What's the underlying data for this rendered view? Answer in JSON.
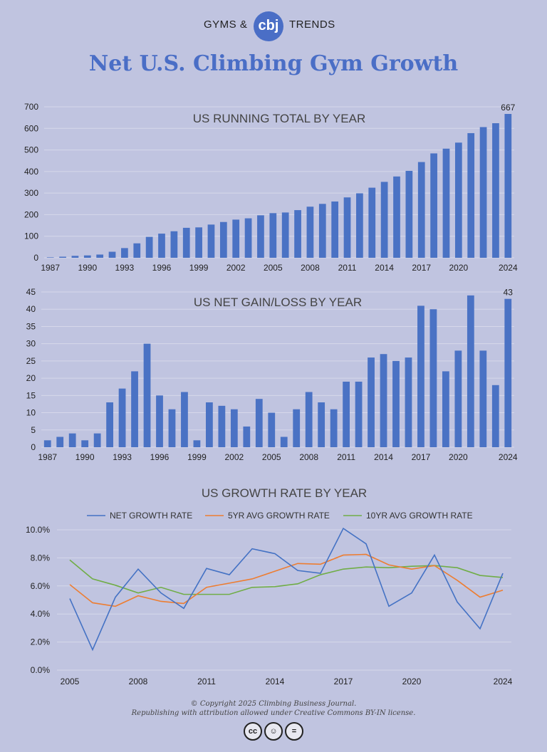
{
  "header": {
    "left": "GYMS &",
    "logo": "cbj",
    "right": "TRENDS"
  },
  "title": "Net U.S. Climbing Gym Growth",
  "footer": {
    "line1": "© Copyright 2025 Climbing Business Journal.",
    "line2": "Republishing with attribution allowed under Creative Commons BY-IN license."
  },
  "icons": [
    "cc-icon",
    "attribution-icon",
    "no-derivatives-icon"
  ],
  "colors": {
    "bar": "#4a72c4",
    "net": "#4472c4",
    "avg5": "#ed7d31",
    "avg10": "#70ad47",
    "title": "#4a6ec6"
  },
  "chart_data": [
    {
      "type": "bar",
      "title": "US RUNNING TOTAL BY YEAR",
      "x": [
        1987,
        1988,
        1989,
        1990,
        1991,
        1992,
        1993,
        1994,
        1995,
        1996,
        1997,
        1998,
        1999,
        2000,
        2001,
        2002,
        2003,
        2004,
        2005,
        2006,
        2007,
        2008,
        2009,
        2010,
        2011,
        2012,
        2013,
        2014,
        2015,
        2016,
        2017,
        2018,
        2019,
        2020,
        2021,
        2022,
        2023,
        2024
      ],
      "values": [
        2,
        5,
        9,
        11,
        15,
        28,
        45,
        67,
        97,
        112,
        123,
        139,
        141,
        154,
        166,
        177,
        183,
        197,
        207,
        210,
        221,
        237,
        250,
        261,
        280,
        299,
        325,
        352,
        377,
        403,
        444,
        484,
        506,
        534,
        578,
        606,
        624,
        667
      ],
      "ticks": [
        "1987",
        "1990",
        "1993",
        "1996",
        "1999",
        "2002",
        "2005",
        "2008",
        "2011",
        "2014",
        "2017",
        "2020",
        "2024"
      ],
      "ylim": [
        0,
        700
      ],
      "yticks": [
        "0",
        "100",
        "200",
        "300",
        "400",
        "500",
        "600",
        "700"
      ],
      "last_label": "667"
    },
    {
      "type": "bar",
      "title": "US NET GAIN/LOSS BY YEAR",
      "x": [
        1987,
        1988,
        1989,
        1990,
        1991,
        1992,
        1993,
        1994,
        1995,
        1996,
        1997,
        1998,
        1999,
        2000,
        2001,
        2002,
        2003,
        2004,
        2005,
        2006,
        2007,
        2008,
        2009,
        2010,
        2011,
        2012,
        2013,
        2014,
        2015,
        2016,
        2017,
        2018,
        2019,
        2020,
        2021,
        2022,
        2023,
        2024
      ],
      "values": [
        2,
        3,
        4,
        2,
        4,
        13,
        17,
        22,
        30,
        15,
        11,
        16,
        2,
        13,
        12,
        11,
        6,
        14,
        10,
        3,
        11,
        16,
        13,
        11,
        19,
        19,
        26,
        27,
        25,
        26,
        41,
        40,
        22,
        28,
        44,
        28,
        18,
        43
      ],
      "ticks": [
        "1987",
        "1990",
        "1993",
        "1996",
        "1999",
        "2002",
        "2005",
        "2008",
        "2011",
        "2014",
        "2017",
        "2020",
        "2024"
      ],
      "ylim": [
        0,
        45
      ],
      "yticks": [
        "0",
        "5",
        "10",
        "15",
        "20",
        "25",
        "30",
        "35",
        "40",
        "45"
      ],
      "last_label": "43"
    },
    {
      "type": "line",
      "title": "US GROWTH RATE BY YEAR",
      "x": [
        2005,
        2006,
        2007,
        2008,
        2009,
        2010,
        2011,
        2012,
        2013,
        2014,
        2015,
        2016,
        2017,
        2018,
        2019,
        2020,
        2021,
        2022,
        2023,
        2024
      ],
      "ticks": [
        "2005",
        "2008",
        "2011",
        "2014",
        "2017",
        "2020",
        "2024"
      ],
      "ylim": [
        0,
        10
      ],
      "yticks": [
        "0.0%",
        "2.0%",
        "4.0%",
        "6.0%",
        "8.0%",
        "10.0%"
      ],
      "series": [
        {
          "name": "NET GROWTH RATE",
          "color": "#4472c4",
          "values": [
            5.1,
            1.45,
            5.2,
            7.2,
            5.5,
            4.4,
            7.25,
            6.8,
            8.65,
            8.3,
            7.1,
            6.9,
            10.1,
            9.0,
            4.55,
            5.5,
            8.2,
            4.85,
            2.95,
            6.9
          ]
        },
        {
          "name": "5YR AVG GROWTH RATE",
          "color": "#ed7d31",
          "values": [
            6.1,
            4.8,
            4.55,
            5.3,
            4.9,
            4.75,
            5.9,
            6.2,
            6.5,
            7.05,
            7.6,
            7.55,
            8.2,
            8.25,
            7.5,
            7.2,
            7.45,
            6.4,
            5.2,
            5.7
          ]
        },
        {
          "name": "10YR AVG GROWTH RATE",
          "color": "#70ad47",
          "values": [
            7.85,
            6.5,
            6.05,
            5.5,
            5.9,
            5.4,
            5.4,
            5.4,
            5.9,
            5.95,
            6.15,
            6.8,
            7.2,
            7.35,
            7.3,
            7.4,
            7.45,
            7.3,
            6.75,
            6.6
          ]
        }
      ]
    }
  ]
}
